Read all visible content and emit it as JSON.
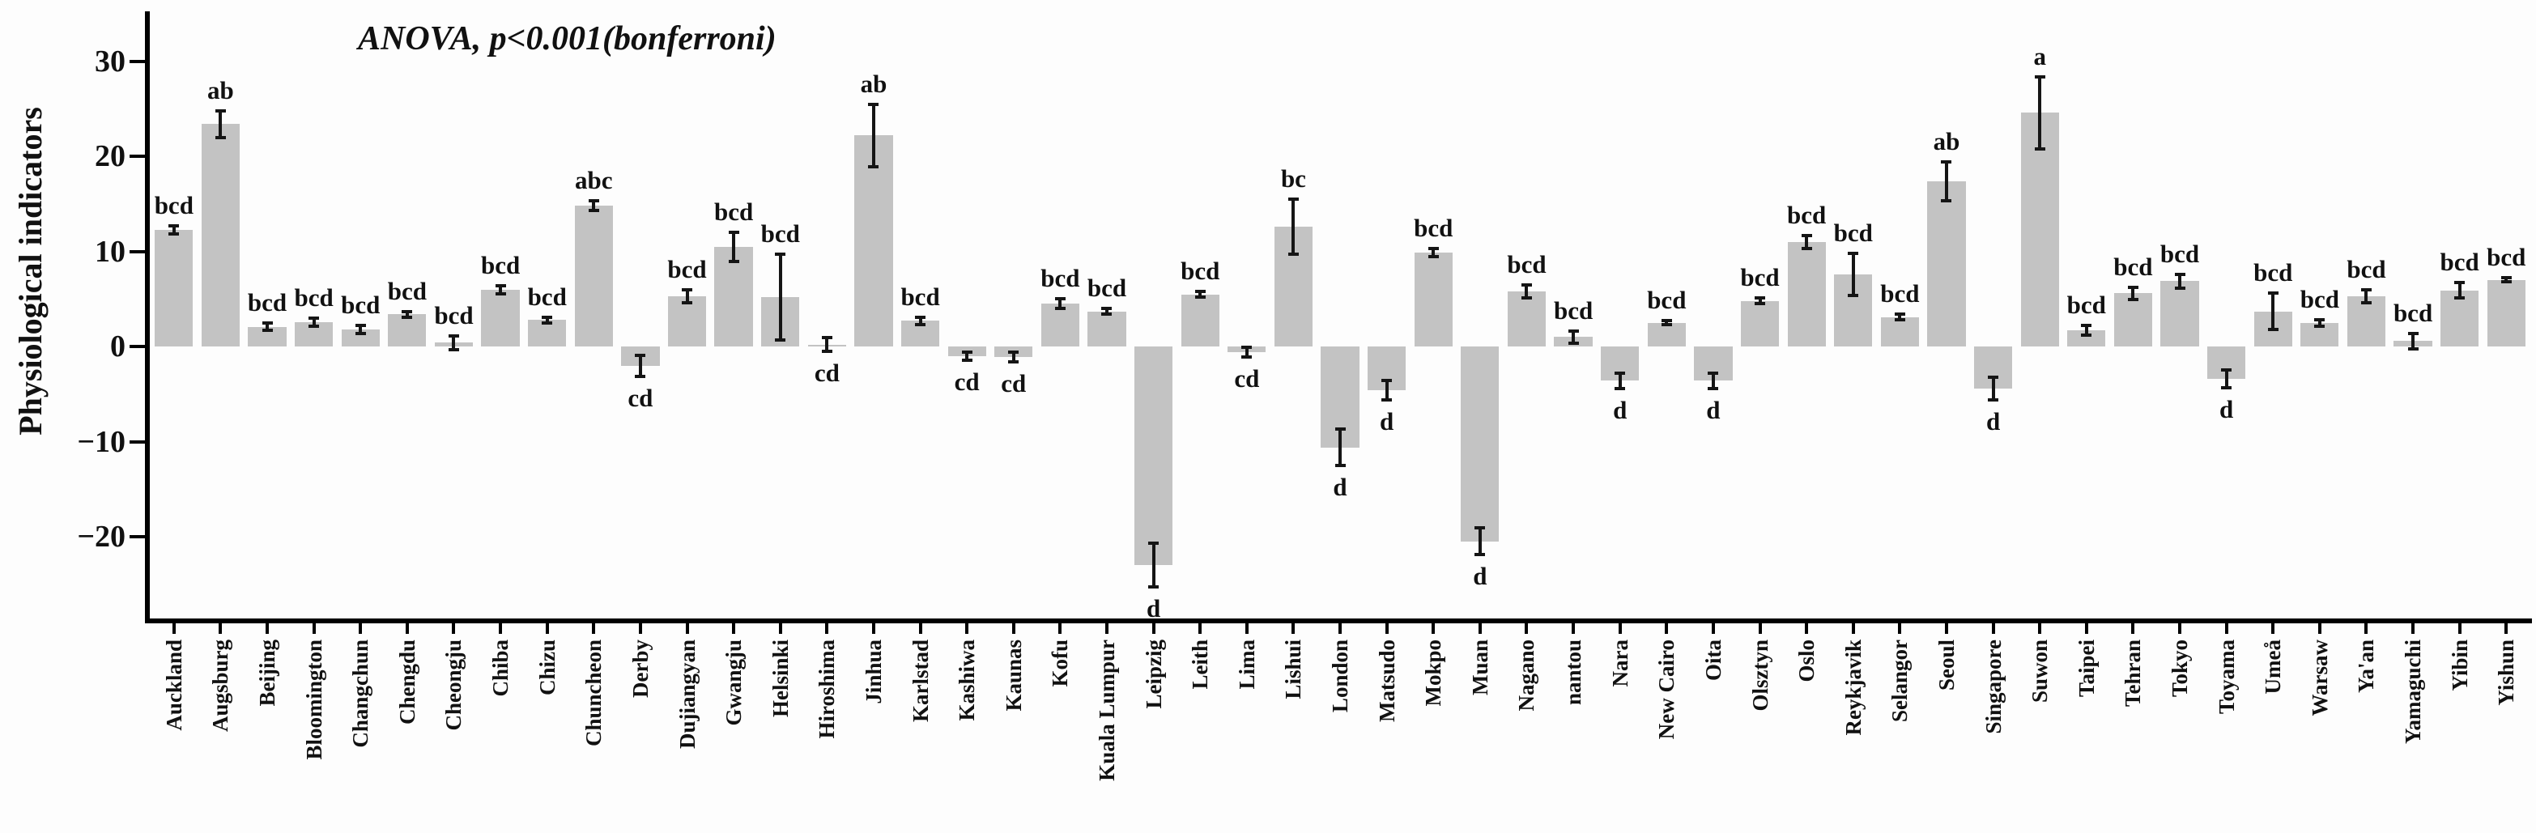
{
  "chart_data": {
    "type": "bar",
    "title_annotation": "ANOVA, p<0.001(bonferroni)",
    "xlabel": "",
    "ylabel": "Physiological indicators",
    "yticks": [
      30,
      20,
      10,
      0,
      -10,
      -20
    ],
    "ylim": [
      -28.6,
      35.1
    ],
    "grid": false,
    "legend": "none",
    "bar_color": "#c3c3c3",
    "error_bar_color": "#151515",
    "axis_color": "#000000",
    "categories": [
      "Auckland",
      "Augsburg",
      "Beijing",
      "Bloomington",
      "Changchun",
      "Chengdu",
      "Cheongju",
      "Chiba",
      "Chizu",
      "Chuncheon",
      "Derby",
      "Dujiangyan",
      "Gwangju",
      "Helsinki",
      "Hiroshima",
      "Jinhua",
      "Karlstad",
      "Kashiwa",
      "Kaunas",
      "Kofu",
      "Kuala Lumpur",
      "Leipzig",
      "Leith",
      "Lima",
      "Lishui",
      "London",
      "Matsudo",
      "Mokpo",
      "Muan",
      "Nagano",
      "nantou",
      "Nara",
      "New Cairo",
      "Oita",
      "Olsztyn",
      "Oslo",
      "Reykjavik",
      "Selangor",
      "Seoul",
      "Singapore",
      "Suwon",
      "Taipei",
      "Tehran",
      "Tokyo",
      "Toyama",
      "Umeå",
      "Warsaw",
      "Ya'an",
      "Yamaguchi",
      "Yibin",
      "Yishun"
    ],
    "series": [
      {
        "name": "Physiological indicators",
        "values": [
          12.3,
          23.4,
          2.1,
          2.6,
          1.8,
          3.4,
          0.4,
          6.0,
          2.8,
          14.8,
          -2.0,
          5.3,
          10.5,
          5.2,
          0.2,
          22.2,
          2.7,
          -1.0,
          -1.1,
          4.5,
          3.7,
          -23.0,
          5.5,
          -0.6,
          12.6,
          -10.6,
          -4.6,
          9.9,
          -20.5,
          5.8,
          1.0,
          -3.6,
          2.5,
          -3.6,
          4.8,
          11.0,
          7.6,
          3.1,
          17.4,
          -4.4,
          24.6,
          1.7,
          5.6,
          6.9,
          -3.4,
          3.7,
          2.5,
          5.3,
          0.6,
          5.9,
          7.0
        ],
        "errors": [
          0.5,
          1.5,
          0.5,
          0.5,
          0.5,
          0.4,
          0.8,
          0.5,
          0.4,
          0.6,
          1.2,
          0.8,
          1.6,
          4.6,
          0.8,
          3.4,
          0.5,
          0.5,
          0.6,
          0.6,
          0.4,
          2.4,
          0.4,
          0.6,
          3.0,
          2.0,
          1.1,
          0.5,
          1.5,
          0.8,
          0.7,
          0.9,
          0.3,
          0.9,
          0.4,
          0.8,
          2.3,
          0.4,
          2.1,
          1.3,
          3.9,
          0.6,
          0.7,
          0.8,
          1.0,
          2.0,
          0.4,
          0.8,
          0.9,
          0.9,
          0.3
        ],
        "sig_letters": [
          "bcd",
          "ab",
          "bcd",
          "bcd",
          "bcd",
          "bcd",
          "bcd",
          "bcd",
          "bcd",
          "abc",
          "cd",
          "bcd",
          "bcd",
          "bcd",
          "cd",
          "ab",
          "bcd",
          "cd",
          "cd",
          "bcd",
          "bcd",
          "d",
          "bcd",
          "cd",
          "bc",
          "d",
          "d",
          "bcd",
          "d",
          "bcd",
          "bcd",
          "d",
          "bcd",
          "d",
          "bcd",
          "bcd",
          "bcd",
          "bcd",
          "ab",
          "d",
          "a",
          "bcd",
          "bcd",
          "bcd",
          "d",
          "bcd",
          "bcd",
          "bcd",
          "bcd",
          "bcd",
          "bcd"
        ]
      }
    ]
  }
}
